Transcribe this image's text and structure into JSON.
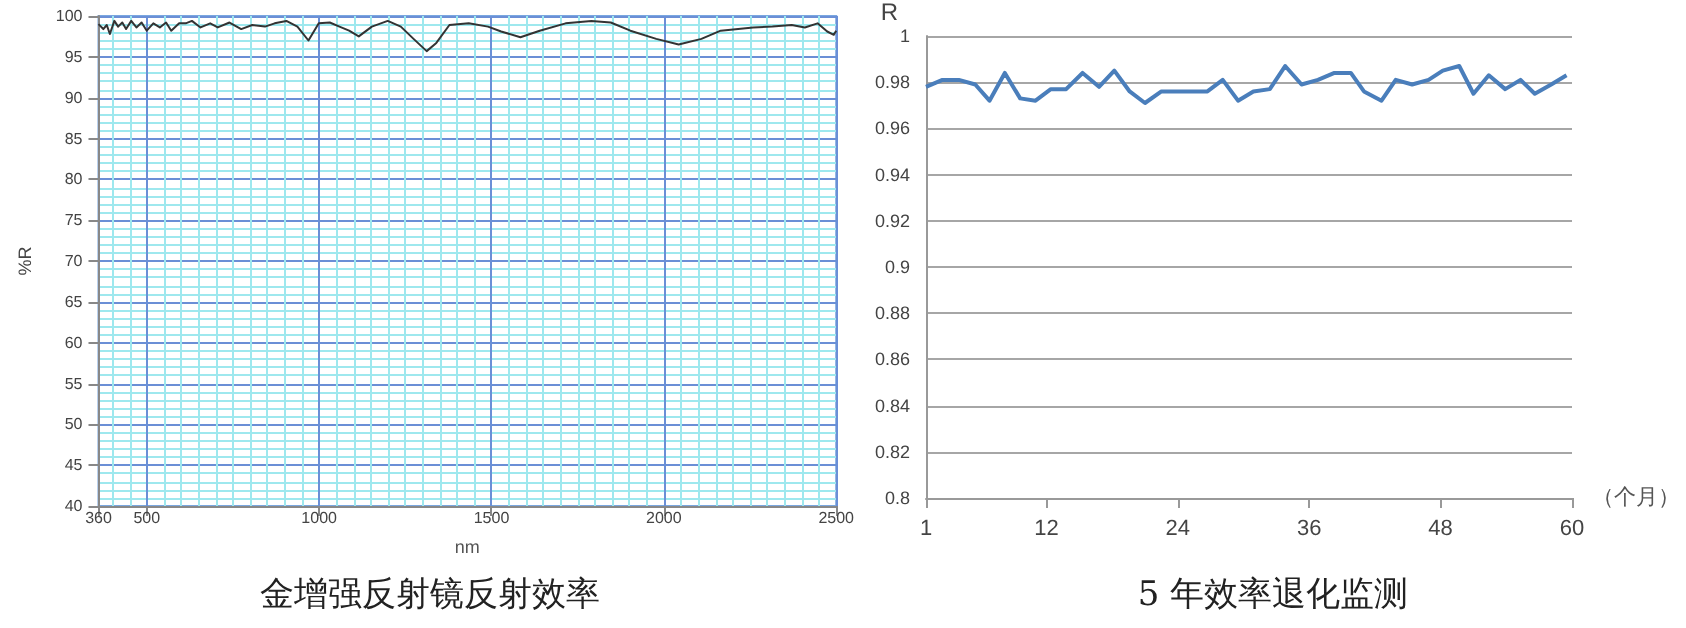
{
  "chart_data": [
    {
      "type": "line",
      "xlabel": "nm",
      "ylabel": "%R",
      "annotations": [
        "金增强反射镜反射效率"
      ],
      "xlim": [
        360,
        2500
      ],
      "ylim": [
        40,
        100
      ],
      "xticks": [
        360,
        500,
        1000,
        1500,
        2000,
        2500,
        {
          "value": 400,
          "label": null
        },
        {
          "value": 450,
          "label": null
        },
        {
          "value": 550,
          "label": null
        },
        {
          "value": 600,
          "label": null
        },
        {
          "value": 650,
          "label": null
        },
        {
          "value": 700,
          "label": null
        },
        {
          "value": 750,
          "label": null
        },
        {
          "value": 800,
          "label": null
        },
        {
          "value": 850,
          "label": null
        },
        {
          "value": 900,
          "label": null
        },
        {
          "value": 950,
          "label": null
        },
        {
          "value": 1050,
          "label": null
        },
        {
          "value": 1100,
          "label": null
        },
        {
          "value": 1150,
          "label": null
        },
        {
          "value": 1200,
          "label": null
        },
        {
          "value": 1250,
          "label": null
        },
        {
          "value": 1300,
          "label": null
        },
        {
          "value": 1350,
          "label": null
        },
        {
          "value": 1400,
          "label": null
        },
        {
          "value": 1450,
          "label": null
        },
        {
          "value": 1550,
          "label": null
        },
        {
          "value": 1600,
          "label": null
        },
        {
          "value": 1650,
          "label": null
        },
        {
          "value": 1700,
          "label": null
        },
        {
          "value": 1750,
          "label": null
        },
        {
          "value": 1800,
          "label": null
        },
        {
          "value": 1850,
          "label": null
        },
        {
          "value": 1900,
          "label": null
        },
        {
          "value": 1950,
          "label": null
        },
        {
          "value": 2050,
          "label": null
        },
        {
          "value": 2100,
          "label": null
        },
        {
          "value": 2150,
          "label": null
        },
        {
          "value": 2200,
          "label": null
        },
        {
          "value": 2250,
          "label": null
        },
        {
          "value": 2300,
          "label": null
        },
        {
          "value": 2350,
          "label": null
        },
        {
          "value": 2400,
          "label": null
        },
        {
          "value": 2450,
          "label": null
        }
      ],
      "yticks": [
        40,
        45,
        50,
        55,
        60,
        65,
        70,
        75,
        80,
        85,
        90,
        95,
        100,
        {
          "value": 41,
          "label": null
        },
        {
          "value": 42,
          "label": null
        },
        {
          "value": 43,
          "label": null
        },
        {
          "value": 44,
          "label": null
        },
        {
          "value": 46,
          "label": null
        },
        {
          "value": 47,
          "label": null
        },
        {
          "value": 48,
          "label": null
        },
        {
          "value": 49,
          "label": null
        },
        {
          "value": 51,
          "label": null
        },
        {
          "value": 52,
          "label": null
        },
        {
          "value": 53,
          "label": null
        },
        {
          "value": 54,
          "label": null
        },
        {
          "value": 56,
          "label": null
        },
        {
          "value": 57,
          "label": null
        },
        {
          "value": 58,
          "label": null
        },
        {
          "value": 59,
          "label": null
        },
        {
          "value": 61,
          "label": null
        },
        {
          "value": 62,
          "label": null
        },
        {
          "value": 63,
          "label": null
        },
        {
          "value": 64,
          "label": null
        },
        {
          "value": 66,
          "label": null
        },
        {
          "value": 67,
          "label": null
        },
        {
          "value": 68,
          "label": null
        },
        {
          "value": 69,
          "label": null
        },
        {
          "value": 71,
          "label": null
        },
        {
          "value": 72,
          "label": null
        },
        {
          "value": 73,
          "label": null
        },
        {
          "value": 74,
          "label": null
        },
        {
          "value": 76,
          "label": null
        },
        {
          "value": 77,
          "label": null
        },
        {
          "value": 78,
          "label": null
        },
        {
          "value": 79,
          "label": null
        },
        {
          "value": 81,
          "label": null
        },
        {
          "value": 82,
          "label": null
        },
        {
          "value": 83,
          "label": null
        },
        {
          "value": 84,
          "label": null
        },
        {
          "value": 86,
          "label": null
        },
        {
          "value": 87,
          "label": null
        },
        {
          "value": 88,
          "label": null
        },
        {
          "value": 89,
          "label": null
        },
        {
          "value": 91,
          "label": null
        },
        {
          "value": 92,
          "label": null
        },
        {
          "value": 93,
          "label": null
        },
        {
          "value": 94,
          "label": null
        },
        {
          "value": 96,
          "label": null
        },
        {
          "value": 97,
          "label": null
        },
        {
          "value": 98,
          "label": null
        },
        {
          "value": 99,
          "label": null
        }
      ],
      "grid": true,
      "marker": "none",
      "series": [
        {
          "color": "#333333",
          "x": [
            360,
            374,
            384,
            393,
            406,
            417,
            429,
            440,
            455,
            470,
            485,
            500,
            519,
            538,
            556,
            571,
            594,
            613,
            631,
            656,
            684,
            706,
            740,
            774,
            806,
            843,
            871,
            905,
            937,
            969,
            999,
            1031,
            1059,
            1087,
            1115,
            1153,
            1199,
            1237,
            1274,
            1312,
            1340,
            1378,
            1434,
            1490,
            1528,
            1584,
            1640,
            1715,
            1790,
            1846,
            1903,
            1978,
            2043,
            2109,
            2165,
            2259,
            2315,
            2371,
            2409,
            2446,
            2474,
            2493,
            2500
          ],
          "values": [
            99.0,
            98.4,
            98.9,
            97.8,
            99.4,
            98.7,
            99.2,
            98.4,
            99.4,
            98.6,
            99.2,
            98.2,
            99.1,
            98.6,
            99.2,
            98.2,
            99.1,
            99.1,
            99.4,
            98.6,
            99.1,
            98.6,
            99.2,
            98.4,
            98.9,
            98.7,
            99.1,
            99.4,
            98.7,
            97.0,
            99.1,
            99.2,
            98.7,
            98.2,
            97.5,
            98.7,
            99.4,
            98.7,
            97.2,
            95.7,
            96.7,
            98.9,
            99.1,
            98.7,
            98.1,
            97.4,
            98.2,
            99.1,
            99.4,
            99.2,
            98.2,
            97.2,
            96.5,
            97.2,
            98.2,
            98.6,
            98.7,
            98.9,
            98.6,
            99.1,
            98.1,
            97.7,
            98.2
          ]
        }
      ]
    },
    {
      "type": "line",
      "xlabel": "（个月）",
      "ylabel": "R",
      "annotations": [
        "5 年效率退化监测"
      ],
      "xlim": [
        1,
        60
      ],
      "ylim": [
        0.8,
        1
      ],
      "xticks": [
        1,
        12,
        24,
        36,
        48,
        60
      ],
      "yticks": [
        0.8,
        0.82,
        0.84,
        0.86,
        0.88,
        0.9,
        0.92,
        0.94,
        0.96,
        0.98,
        1
      ],
      "grid": "y",
      "marker": "none",
      "series": [
        {
          "color": "#4a7ebb",
          "x": [
            1,
            2.5,
            4,
            5.5,
            6.8,
            8.2,
            9.6,
            11,
            12.4,
            13.8,
            15.3,
            16.8,
            18.2,
            19.6,
            21,
            22.5,
            23.8,
            25.3,
            26.7,
            28.1,
            29.5,
            30.9,
            32.4,
            33.8,
            35.3,
            36.8,
            38.3,
            39.8,
            41,
            42.6,
            43.9,
            45.4,
            46.9,
            48.2,
            49.7,
            51,
            52.4,
            53.9,
            55.3,
            56.6,
            58.1,
            59.5
          ],
          "values": [
            0.978,
            0.981,
            0.981,
            0.979,
            0.972,
            0.984,
            0.973,
            0.972,
            0.977,
            0.977,
            0.984,
            0.978,
            0.985,
            0.976,
            0.971,
            0.976,
            0.976,
            0.976,
            0.976,
            0.981,
            0.972,
            0.976,
            0.977,
            0.987,
            0.979,
            0.981,
            0.984,
            0.984,
            0.976,
            0.972,
            0.981,
            0.979,
            0.981,
            0.985,
            0.987,
            0.975,
            0.983,
            0.977,
            0.981,
            0.975,
            0.979,
            0.983
          ]
        }
      ]
    }
  ]
}
